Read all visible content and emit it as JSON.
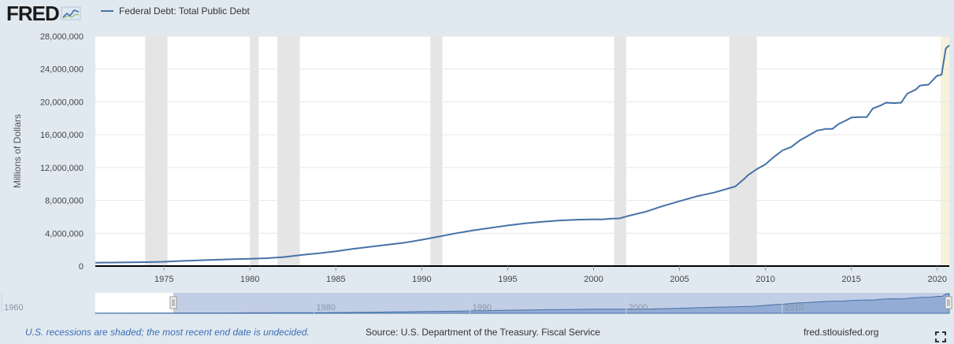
{
  "header": {
    "logo_text": "FRED",
    "legend_label": "Federal Debt: Total Public Debt",
    "series_color": "#4572a7"
  },
  "footer": {
    "note": "U.S. recessions are shaded; the most recent end date is undecided.",
    "source": "Source: U.S. Department of the Treasury. Fiscal Service",
    "site": "fred.stlouisfed.org"
  },
  "icons": {
    "logo_graph": "line-graph-icon",
    "fullscreen": "expand-icon"
  },
  "chart_data": {
    "type": "line",
    "title": "",
    "xlabel": "",
    "ylabel": "Millions of Dollars",
    "xlim": [
      1971.0,
      2020.7
    ],
    "ylim": [
      0,
      28000000
    ],
    "x_ticks": [
      "1975",
      "1980",
      "1985",
      "1990",
      "1995",
      "2000",
      "2005",
      "2010",
      "2015",
      "2020"
    ],
    "x_tick_values": [
      1975,
      1980,
      1985,
      1990,
      1995,
      2000,
      2005,
      2010,
      2015,
      2020
    ],
    "y_ticks": [
      "0",
      "4,000,000",
      "8,000,000",
      "12,000,000",
      "16,000,000",
      "20,000,000",
      "24,000,000",
      "28,000,000"
    ],
    "y_tick_values": [
      0,
      4000000,
      8000000,
      12000000,
      16000000,
      20000000,
      24000000,
      28000000
    ],
    "grid": true,
    "legend": "top-left",
    "recessions": [
      [
        1973.9,
        1975.2
      ],
      [
        1980.0,
        1980.5
      ],
      [
        1981.6,
        1982.9
      ],
      [
        1990.5,
        1991.2
      ],
      [
        2001.2,
        2001.9
      ],
      [
        2007.9,
        2009.5
      ]
    ],
    "undecided_recession_start": 2020.2,
    "series": [
      {
        "name": "Federal Debt: Total Public Debt",
        "x": [
          1971.0,
          1972.0,
          1973.0,
          1974.0,
          1975.0,
          1976.0,
          1977.0,
          1978.0,
          1979.0,
          1980.0,
          1981.0,
          1982.0,
          1983.0,
          1984.0,
          1985.0,
          1986.0,
          1987.0,
          1988.0,
          1989.0,
          1990.0,
          1991.0,
          1992.0,
          1993.0,
          1994.0,
          1995.0,
          1996.0,
          1997.0,
          1998.0,
          1999.0,
          2000.0,
          2000.5,
          2001.0,
          2001.5,
          2002.0,
          2003.0,
          2004.0,
          2005.0,
          2006.0,
          2007.0,
          2007.75,
          2008.25,
          2008.75,
          2009.0,
          2009.5,
          2010.0,
          2010.5,
          2011.0,
          2011.5,
          2012.0,
          2012.5,
          2013.0,
          2013.5,
          2013.9,
          2014.25,
          2014.75,
          2015.0,
          2015.5,
          2015.9,
          2016.25,
          2016.75,
          2017.0,
          2017.5,
          2017.9,
          2018.25,
          2018.75,
          2019.0,
          2019.5,
          2019.9,
          2020.0,
          2020.25,
          2020.5,
          2020.7
        ],
        "values": [
          410000,
          430000,
          460000,
          480000,
          530000,
          620000,
          700000,
          770000,
          830000,
          880000,
          960000,
          1100000,
          1350000,
          1560000,
          1800000,
          2100000,
          2350000,
          2600000,
          2850000,
          3200000,
          3600000,
          4000000,
          4350000,
          4650000,
          4950000,
          5200000,
          5400000,
          5550000,
          5650000,
          5700000,
          5680000,
          5770000,
          5800000,
          6100000,
          6600000,
          7300000,
          7900000,
          8500000,
          8950000,
          9400000,
          9700000,
          10600000,
          11100000,
          11800000,
          12400000,
          13300000,
          14100000,
          14500000,
          15300000,
          15900000,
          16500000,
          16700000,
          16700000,
          17300000,
          17800000,
          18100000,
          18150000,
          18150000,
          19200000,
          19600000,
          19900000,
          19850000,
          19900000,
          21000000,
          21500000,
          22000000,
          22100000,
          23000000,
          23200000,
          23300000,
          26500000,
          26900000
        ]
      }
    ],
    "navigator": {
      "x_ticks": [
        "1960",
        "1980",
        "1990",
        "2000",
        "2010"
      ],
      "x_tick_values": [
        1960,
        1980,
        1990,
        2000,
        2010
      ]
    }
  }
}
